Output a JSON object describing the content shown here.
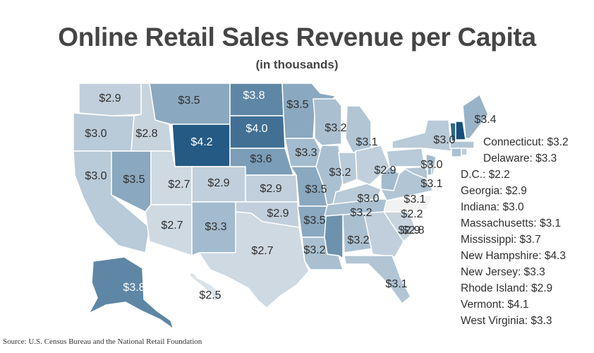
{
  "title": "Online Retail Sales Revenue per Capita",
  "subtitle": "(in thousands)",
  "source": "Source: U.S. Census Bureau and the National Retail Foundation",
  "color_scale": {
    "low": "#f2f2f2",
    "mid": "#9fb8cc",
    "high": "#154f7a"
  },
  "states": {
    "WA": "$2.9",
    "OR": "$3.0",
    "CA": "$3.0",
    "ID": "$2.8",
    "NV": "$3.5",
    "MT": "$3.5",
    "WY": "$4.2",
    "UT": "$2.7",
    "AZ": "$2.7",
    "CO": "$2.9",
    "NM": "$3.3",
    "ND": "$3.8",
    "SD": "$4.0",
    "NE": "$3.6",
    "KS": "$2.9",
    "OK": "$2.9",
    "TX": "$2.7",
    "MN": "$3.5",
    "IA": "$3.3",
    "MO": "$3.5",
    "AR": "$3.5",
    "LA": "$3.2",
    "WI": "$3.2",
    "IL": "$3.2",
    "MI": "$3.1",
    "IN": "$3.0",
    "OH": "$2.9",
    "KY": "$3.0",
    "TN": "$3.2",
    "MS": "$3.7",
    "AL": "$3.2",
    "GA": "$2.9",
    "FL": "$3.1",
    "SC": "$2.8",
    "NC": "$2.2",
    "VA": "$3.1",
    "WV": "$3.3",
    "PA": "$3.0",
    "NY": "$3.0",
    "ME": "$3.4",
    "MD": "$3.1",
    "NJ": "$3.3",
    "DE": "$3.3",
    "CT": "$3.2",
    "RI": "$2.9",
    "MA": "$3.1",
    "VT": "$4.1",
    "NH": "$4.3",
    "AK": "$3.8",
    "HI": "$2.5"
  },
  "legend_labels": [
    "Connecticut: $3.2",
    "Delaware: $3.3",
    "D.C.: $2.2",
    "Georgia: $2.9",
    "Indiana: $3.0",
    "Massachusetts: $3.1",
    "Mississippi: $3.7",
    "New Hampshire: $4.3",
    "New Jersey: $3.3",
    "Rhode Island: $2.9",
    "Vermont: $4.1",
    "West Virginia: $3.3"
  ]
}
